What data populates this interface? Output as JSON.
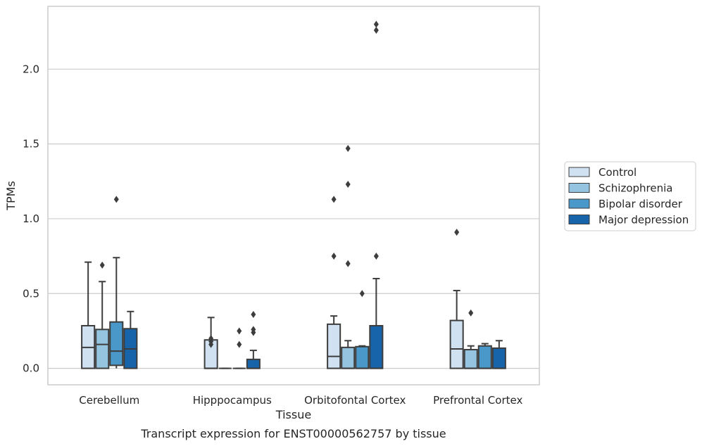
{
  "chart_data": {
    "type": "box",
    "caption": "Transcript expression for ENST00000562757 by tissue",
    "xlabel": "Tissue",
    "ylabel": "TPMs",
    "ylim": [
      -0.11,
      2.42
    ],
    "yticks": [
      0.0,
      0.5,
      1.0,
      1.5,
      2.0
    ],
    "ytick_labels": [
      "0.0",
      "0.5",
      "1.0",
      "1.5",
      "2.0"
    ],
    "grid": true,
    "legend_position": "right",
    "categories": [
      "Cerebellum",
      "Hipppocampus",
      "Orbitofontal Cortex",
      "Prefrontal Cortex"
    ],
    "series": [
      {
        "name": "Control",
        "color": "#d0e1f2",
        "boxes": [
          {
            "whislo": 0.0,
            "q1": 0.0,
            "med": 0.14,
            "q3": 0.285,
            "whishi": 0.71,
            "fliers": []
          },
          {
            "whislo": 0.0,
            "q1": 0.0,
            "med": 0.0,
            "q3": 0.19,
            "whishi": 0.34,
            "fliers": [
              0.16,
              0.18,
              0.2
            ]
          },
          {
            "whislo": 0.0,
            "q1": 0.0,
            "med": 0.08,
            "q3": 0.295,
            "whishi": 0.35,
            "fliers": [
              0.75,
              1.13
            ]
          },
          {
            "whislo": 0.0,
            "q1": 0.0,
            "med": 0.13,
            "q3": 0.32,
            "whishi": 0.52,
            "fliers": [
              0.91
            ]
          }
        ]
      },
      {
        "name": "Schizophrenia",
        "color": "#94c4df",
        "boxes": [
          {
            "whislo": 0.0,
            "q1": 0.0,
            "med": 0.16,
            "q3": 0.26,
            "whishi": 0.58,
            "fliers": [
              0.69
            ]
          },
          {
            "whislo": 0.0,
            "q1": 0.0,
            "med": 0.0,
            "q3": 0.0,
            "whishi": 0.0,
            "fliers": []
          },
          {
            "whislo": 0.0,
            "q1": 0.0,
            "med": 0.0,
            "q3": 0.14,
            "whishi": 0.185,
            "fliers": [
              0.7,
              1.23,
              1.47
            ]
          },
          {
            "whislo": 0.0,
            "q1": 0.0,
            "med": 0.0,
            "q3": 0.125,
            "whishi": 0.15,
            "fliers": [
              0.37
            ]
          }
        ]
      },
      {
        "name": "Bipolar disorder",
        "color": "#4a98c9",
        "boxes": [
          {
            "whislo": 0.0,
            "q1": 0.02,
            "med": 0.115,
            "q3": 0.31,
            "whishi": 0.74,
            "fliers": [
              1.13
            ]
          },
          {
            "whislo": 0.0,
            "q1": 0.0,
            "med": 0.0,
            "q3": 0.0,
            "whishi": 0.0,
            "fliers": [
              0.16,
              0.25
            ]
          },
          {
            "whislo": 0.0,
            "q1": 0.0,
            "med": 0.0,
            "q3": 0.145,
            "whishi": 0.15,
            "fliers": [
              0.5
            ]
          },
          {
            "whislo": 0.0,
            "q1": 0.0,
            "med": 0.0,
            "q3": 0.15,
            "whishi": 0.165,
            "fliers": []
          }
        ]
      },
      {
        "name": "Major depression",
        "color": "#1764ab",
        "boxes": [
          {
            "whislo": 0.0,
            "q1": 0.0,
            "med": 0.13,
            "q3": 0.265,
            "whishi": 0.38,
            "fliers": []
          },
          {
            "whislo": 0.0,
            "q1": 0.0,
            "med": 0.0,
            "q3": 0.06,
            "whishi": 0.12,
            "fliers": [
              0.24,
              0.26,
              0.36
            ]
          },
          {
            "whislo": 0.0,
            "q1": 0.0,
            "med": 0.0,
            "q3": 0.285,
            "whishi": 0.6,
            "fliers": [
              0.75,
              2.26,
              2.3
            ]
          },
          {
            "whislo": 0.0,
            "q1": 0.0,
            "med": 0.0,
            "q3": 0.135,
            "whishi": 0.185,
            "fliers": []
          }
        ]
      }
    ]
  }
}
